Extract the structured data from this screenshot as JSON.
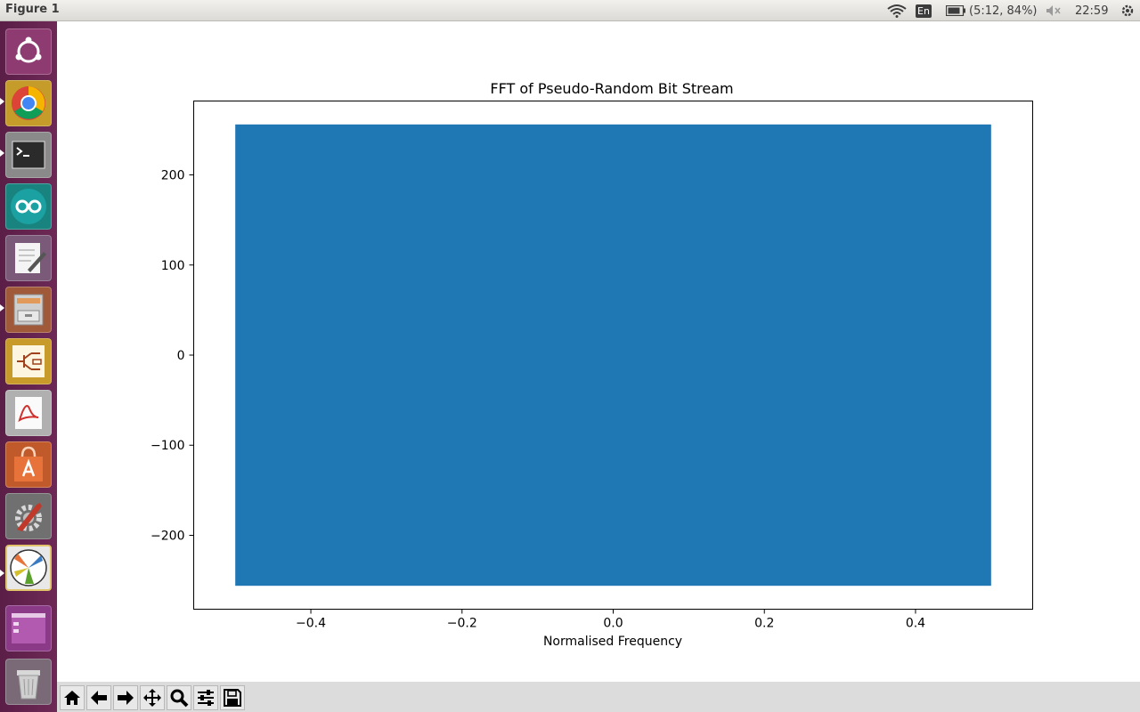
{
  "window": {
    "title": "Figure 1"
  },
  "tray": {
    "keyboard": "En",
    "battery": "(5:12, 84%)",
    "clock": "22:59"
  },
  "launcher": {
    "items": [
      {
        "name": "ubuntu-dash-icon"
      },
      {
        "name": "chrome-icon"
      },
      {
        "name": "terminal-icon"
      },
      {
        "name": "arduino-icon"
      },
      {
        "name": "text-editor-icon"
      },
      {
        "name": "file-cabinet-icon"
      },
      {
        "name": "circuit-editor-icon"
      },
      {
        "name": "pdf-reader-icon"
      },
      {
        "name": "software-center-icon"
      },
      {
        "name": "system-settings-icon"
      },
      {
        "name": "python-figure-icon"
      },
      {
        "name": "workspace-switcher-icon"
      },
      {
        "name": "trash-icon"
      }
    ]
  },
  "toolbar": {
    "buttons": [
      {
        "name": "home-icon"
      },
      {
        "name": "back-icon"
      },
      {
        "name": "forward-icon"
      },
      {
        "name": "pan-icon"
      },
      {
        "name": "zoom-icon"
      },
      {
        "name": "configure-subplots-icon"
      },
      {
        "name": "save-icon"
      }
    ]
  },
  "chart_data": {
    "type": "line",
    "title": "FFT of Pseudo-Random Bit Stream",
    "xlabel": "Normalised Frequency",
    "ylabel": "",
    "xlim": [
      -0.555,
      0.555
    ],
    "ylim": [
      -282,
      282
    ],
    "x_ticks": [
      -0.4,
      -0.2,
      0.0,
      0.2,
      0.4
    ],
    "x_tick_labels": [
      "−0.4",
      "−0.2",
      "0.0",
      "0.2",
      "0.4"
    ],
    "y_ticks": [
      200,
      100,
      0,
      -100,
      -200
    ],
    "y_tick_labels": [
      "200",
      "100",
      "0",
      "−100",
      "−200"
    ],
    "series": [
      {
        "x_range": [
          -0.5,
          0.5
        ],
        "y_range": [
          -256,
          256
        ],
        "color": "#1f77b4"
      }
    ],
    "grid": false
  }
}
